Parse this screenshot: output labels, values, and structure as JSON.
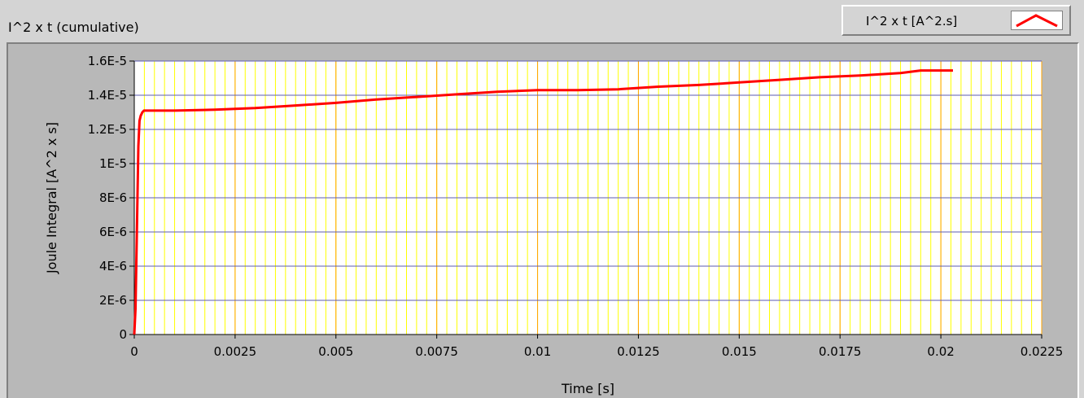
{
  "graph": {
    "title": "I^2 x t (cumulative)"
  },
  "legend": {
    "label": "I^2 x t [A^2.s]",
    "swatch_icon": "line-plot-icon"
  },
  "colors": {
    "plot_background": "#ffffff",
    "minor_grid": "#ffff00",
    "major_grid_x": "#ffa500",
    "major_grid_y": "#5b5bb0",
    "series": "#ff0000",
    "frame": "#b8b8b8"
  },
  "chart_data": {
    "type": "line",
    "title": "I^2 x t (cumulative)",
    "xlabel": "Time [s]",
    "ylabel": "Joule Integral [A^2 x s]",
    "xlim": [
      0,
      0.0225
    ],
    "ylim": [
      0,
      1.6e-05
    ],
    "grid": true,
    "legend_position": "top-right",
    "x_ticks": [
      0,
      0.0025,
      0.005,
      0.0075,
      0.01,
      0.0125,
      0.015,
      0.0175,
      0.02,
      0.0225
    ],
    "x_tick_labels": [
      "0",
      "0.0025",
      "0.005",
      "0.0075",
      "0.01",
      "0.0125",
      "0.015",
      "0.0175",
      "0.02",
      "0.0225"
    ],
    "y_ticks": [
      0,
      2e-06,
      4e-06,
      6e-06,
      8e-06,
      1e-05,
      1.2e-05,
      1.4e-05,
      1.6e-05
    ],
    "y_tick_labels": [
      "0",
      "2E-6",
      "4E-6",
      "6E-6",
      "8E-6",
      "1E-5",
      "1.2E-5",
      "1.4E-5",
      "1.6E-5"
    ],
    "series": [
      {
        "name": "I^2 x t [A^2.s]",
        "color": "#ff0000",
        "x": [
          0,
          3e-05,
          6e-05,
          0.0001,
          0.00013,
          0.00016,
          0.0002,
          0.00024,
          0.0003,
          0.0005,
          0.001,
          0.002,
          0.003,
          0.004,
          0.005,
          0.006,
          0.007,
          0.008,
          0.009,
          0.01,
          0.011,
          0.012,
          0.013,
          0.014,
          0.015,
          0.016,
          0.017,
          0.018,
          0.019,
          0.0195,
          0.0203
        ],
        "y": [
          0,
          1.5e-06,
          5.5e-06,
          1.1e-05,
          1.25e-05,
          1.28e-05,
          1.3e-05,
          1.31e-05,
          1.31e-05,
          1.31e-05,
          1.31e-05,
          1.315e-05,
          1.325e-05,
          1.34e-05,
          1.355e-05,
          1.375e-05,
          1.39e-05,
          1.405e-05,
          1.42e-05,
          1.43e-05,
          1.43e-05,
          1.435e-05,
          1.45e-05,
          1.46e-05,
          1.475e-05,
          1.49e-05,
          1.505e-05,
          1.515e-05,
          1.53e-05,
          1.545e-05,
          1.545e-05
        ]
      }
    ]
  }
}
